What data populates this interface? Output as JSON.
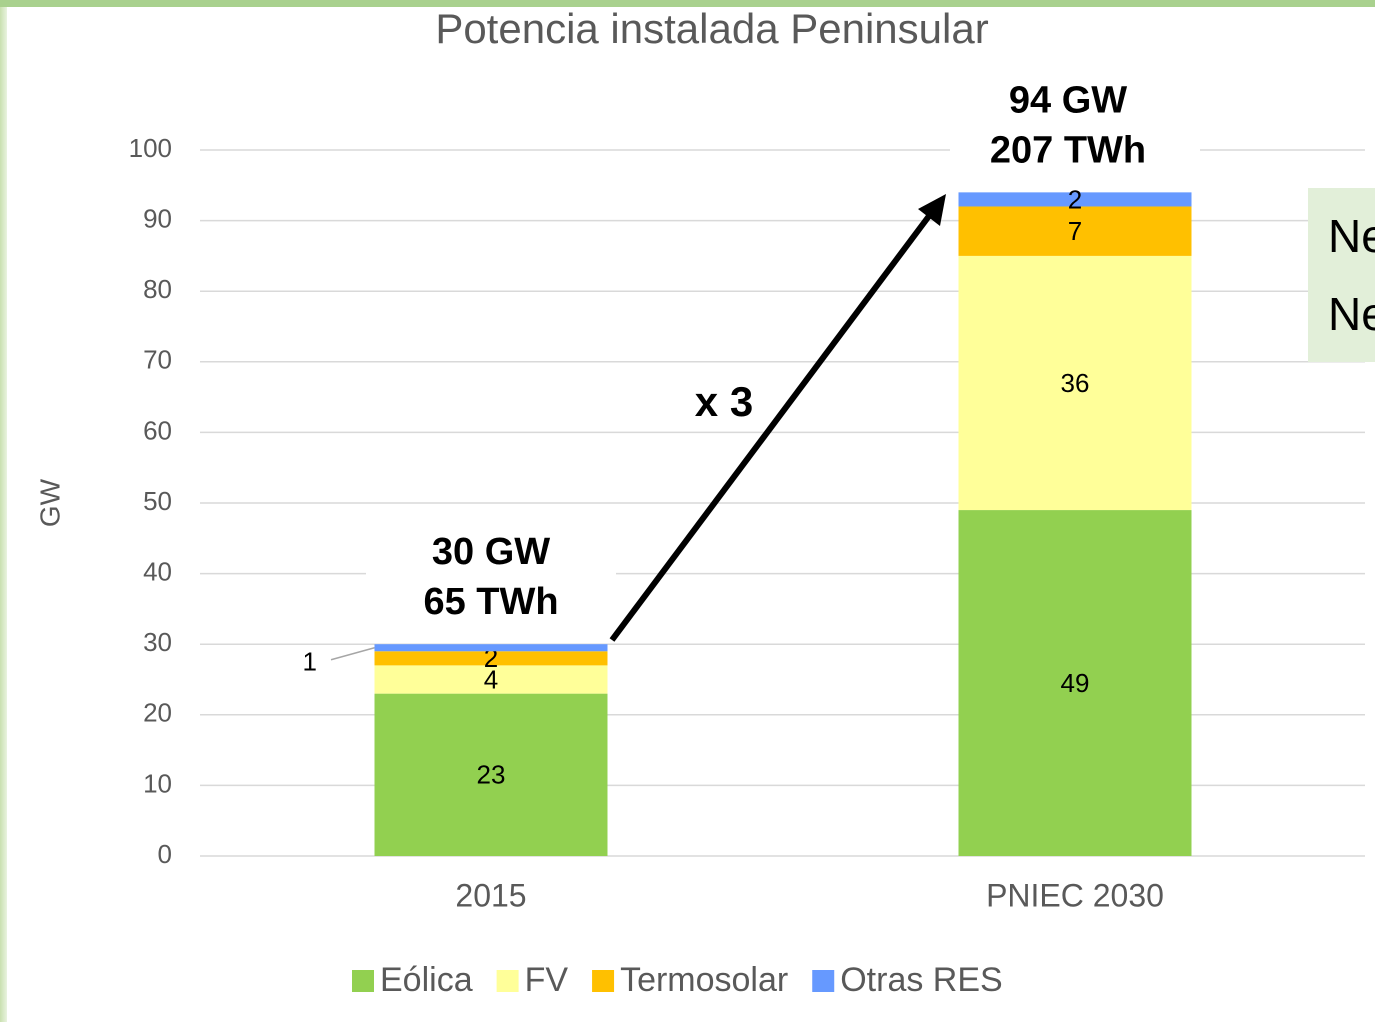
{
  "chart_data": {
    "type": "stacked_bar",
    "title": "Potencia instalada Peninsular",
    "y_label": "GW",
    "categories": [
      "2015",
      "PNIEC 2030"
    ],
    "series": [
      {
        "name": "Eólica",
        "color": "#92d050",
        "values": [
          23,
          49
        ]
      },
      {
        "name": "FV",
        "color": "#ffff99",
        "values": [
          4,
          36
        ]
      },
      {
        "name": "Termosolar",
        "color": "#ffc000",
        "values": [
          2,
          7
        ]
      },
      {
        "name": "Otras RES",
        "color": "#6699ff",
        "values": [
          1,
          2
        ]
      }
    ],
    "ylim": [
      0,
      100
    ],
    "yticks": [
      0,
      10,
      20,
      30,
      40,
      50,
      60,
      70,
      80,
      90,
      100
    ],
    "grid": true,
    "legend": "bottom",
    "bar_totals": [
      [
        "30 GW",
        "65 TWh"
      ],
      [
        "94 GW",
        "207 TWh"
      ]
    ],
    "annotation": "x 3",
    "side_note": [
      "Ne",
      "Ne"
    ]
  }
}
